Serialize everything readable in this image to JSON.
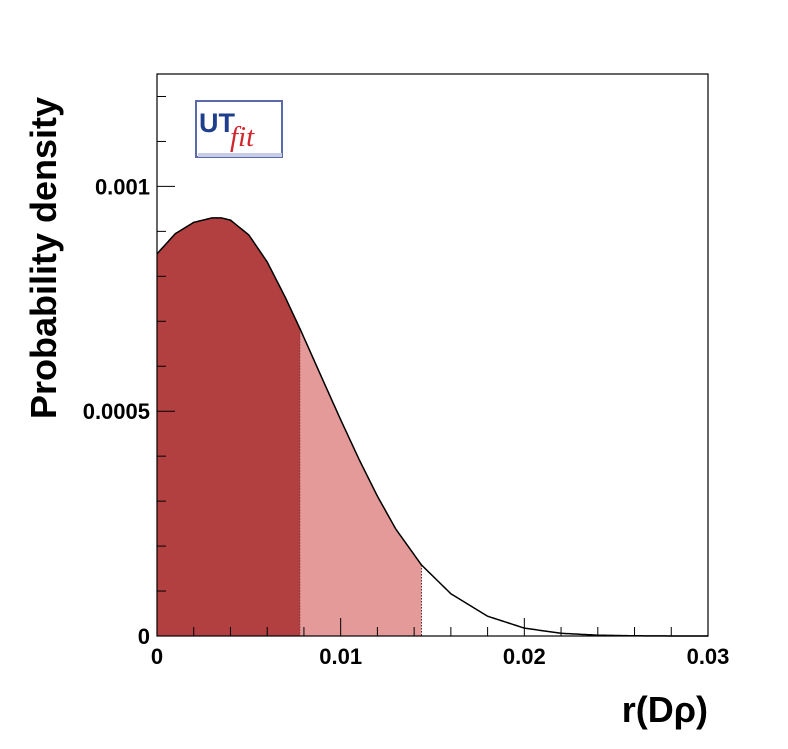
{
  "chart_data": {
    "type": "area",
    "xlabel": "r(Dρ)",
    "ylabel": "Probability density",
    "xlim": [
      0,
      0.03
    ],
    "ylim": [
      0,
      0.00125
    ],
    "x_ticks": [
      {
        "value": 0,
        "label": "0"
      },
      {
        "value": 0.01,
        "label": "0.01"
      },
      {
        "value": 0.02,
        "label": "0.02"
      },
      {
        "value": 0.03,
        "label": "0.03"
      }
    ],
    "y_ticks": [
      {
        "value": 0,
        "label": "0"
      },
      {
        "value": 0.0005,
        "label": "0.0005"
      },
      {
        "value": 0.001,
        "label": "0.001"
      }
    ],
    "series": [
      {
        "x": [
          0,
          0.001,
          0.002,
          0.003,
          0.0035,
          0.004,
          0.005,
          0.006,
          0.007,
          0.0078,
          0.009,
          0.01,
          0.011,
          0.012,
          0.013,
          0.0144,
          0.016,
          0.018,
          0.02,
          0.022,
          0.024,
          0.026,
          0.028,
          0.03
        ],
        "y": [
          0.00085,
          0.000895,
          0.00092,
          0.00093,
          0.00093,
          0.000925,
          0.000892,
          0.000832,
          0.000752,
          0.000682,
          0.000572,
          0.000481,
          0.000393,
          0.000311,
          0.000238,
          0.000158,
          9.4e-05,
          4.4e-05,
          1.75e-05,
          6e-06,
          1.8e-06,
          5e-07,
          1e-07,
          0.0
        ]
      }
    ],
    "regions": [
      {
        "x_from": 0,
        "x_to": 0.0078,
        "color": "#b34040"
      },
      {
        "x_from": 0.0078,
        "x_to": 0.0144,
        "color": "#e59a9a"
      }
    ],
    "line_color": "#000000"
  },
  "logo": {
    "part1": "UT",
    "part2": "fit"
  }
}
